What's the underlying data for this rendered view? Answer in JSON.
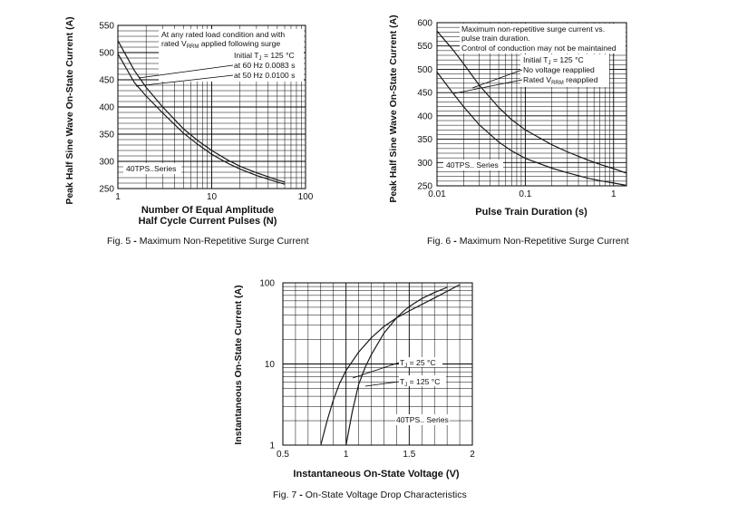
{
  "figures": [
    {
      "caption_prefix": "Fig. 5",
      "caption_bullet": "-",
      "caption_text": "Maximum Non-Repetitive Surge Current"
    },
    {
      "caption_prefix": "Fig. 6",
      "caption_bullet": "-",
      "caption_text": "Maximum Non-Repetitive Surge Current"
    },
    {
      "caption_prefix": "Fig. 7",
      "caption_bullet": "-",
      "caption_text": "On-State Voltage Drop Characteristics"
    }
  ],
  "chart_data": [
    {
      "type": "line",
      "ylabel": "Peak Half Sine Wave On-State Current (A)",
      "xlabel": [
        "Number Of Equal Amplitude",
        "Half Cycle Current Pulses (N)"
      ],
      "x_scale": "log",
      "xlim": [
        1,
        100
      ],
      "ylim": [
        250,
        550
      ],
      "x_tick_labels": [
        {
          "v": 1,
          "t": "1"
        },
        {
          "v": 10,
          "t": "10"
        },
        {
          "v": 100,
          "t": "100"
        }
      ],
      "y_tick_labels": [
        250,
        300,
        350,
        400,
        450,
        500,
        550
      ],
      "grid": true,
      "series": [
        {
          "x": [
            1,
            1.5,
            2,
            3,
            5,
            7,
            10,
            15,
            20,
            30,
            50,
            60
          ],
          "y": [
            522,
            467,
            436,
            400,
            360,
            339,
            320,
            302,
            291,
            279,
            266,
            262
          ]
        },
        {
          "x": [
            1,
            1.5,
            2,
            3,
            5,
            7,
            10,
            15,
            20,
            30,
            50,
            60
          ],
          "y": [
            498,
            445,
            420,
            389,
            352,
            332,
            313,
            296,
            286,
            274,
            262,
            258
          ]
        }
      ],
      "annotations": [
        "At any rated load condition and with",
        "rated V",
        "RRM",
        "applied following surge",
        "Initial T",
        "J",
        "= 125 °C",
        "at 60 Hz 0.0083 s",
        "at 50 Hz 0.0100 s"
      ],
      "series_label": "40TPS..Series"
    },
    {
      "type": "line",
      "ylabel": "Peak Half Sine Wave On-State Current (A)",
      "xlabel": "Pulse Train Duration (s)",
      "x_scale": "log",
      "xlim": [
        0.01,
        1.4
      ],
      "ylim": [
        250,
        600
      ],
      "x_tick_labels": [
        {
          "v": 0.01,
          "t": "0.01"
        },
        {
          "v": 0.1,
          "t": "0.1"
        },
        {
          "v": 1,
          "t": "1"
        }
      ],
      "y_tick_labels": [
        250,
        300,
        350,
        400,
        450,
        500,
        550,
        600
      ],
      "grid": true,
      "series": [
        {
          "x": [
            0.01,
            0.015,
            0.02,
            0.03,
            0.05,
            0.07,
            0.1,
            0.2,
            0.3,
            0.5,
            0.7,
            1,
            1.4
          ],
          "y": [
            582,
            543,
            512,
            466,
            418,
            392,
            370,
            338,
            323,
            306,
            296,
            287,
            277
          ]
        },
        {
          "x": [
            0.01,
            0.015,
            0.02,
            0.03,
            0.05,
            0.07,
            0.1,
            0.2,
            0.3,
            0.5,
            0.7,
            1,
            1.4
          ],
          "y": [
            494,
            450,
            420,
            381,
            344,
            325,
            309,
            288,
            278,
            267,
            261,
            256,
            251
          ]
        }
      ],
      "annotations": [
        "Maximum non-repetitive surge current vs.",
        "pulse train duration.",
        "Control of conduction may not be maintained",
        "Initial T",
        "J",
        "= 125 °C",
        "No voltage reapplied",
        "Rated V",
        "RRM",
        "reapplied"
      ],
      "series_label": "40TPS.. Series"
    },
    {
      "type": "line",
      "ylabel": "Instantaneous On-State Current (A)",
      "xlabel": "Instantaneous On-State Voltage (V)",
      "y_scale": "log",
      "xlim": [
        0.5,
        2
      ],
      "ylim": [
        1,
        100
      ],
      "x_tick_labels": [
        {
          "v": 0.5,
          "t": "0.5"
        },
        {
          "v": 1,
          "t": "1"
        },
        {
          "v": 1.5,
          "t": "1.5"
        },
        {
          "v": 2,
          "t": "2"
        }
      ],
      "y_tick_labels": [
        {
          "v": 1,
          "t": "1"
        },
        {
          "v": 10,
          "t": "10"
        },
        {
          "v": 100,
          "t": "100"
        }
      ],
      "grid": true,
      "series": [
        {
          "name": "T_J = 25 °C",
          "x": [
            1.0,
            1.05,
            1.1,
            1.15,
            1.2,
            1.3,
            1.4,
            1.45,
            1.5,
            1.6,
            1.7,
            1.8
          ],
          "y": [
            1.0,
            2.6,
            5.6,
            9.0,
            13,
            24,
            37,
            44,
            51,
            64,
            76,
            88
          ]
        },
        {
          "name": "T_J = 125 °C",
          "x": [
            0.8,
            0.85,
            0.9,
            0.95,
            1.0,
            1.1,
            1.2,
            1.3,
            1.4,
            1.5,
            1.7,
            1.9
          ],
          "y": [
            1.0,
            2.0,
            3.6,
            5.8,
            8.3,
            14,
            21,
            29,
            37,
            45,
            65,
            95
          ]
        }
      ],
      "legend_labels": [
        {
          "pre": "T",
          "sub": "J",
          "post": "= 25 °C"
        },
        {
          "pre": "T",
          "sub": "J",
          "post": "= 125 °C"
        }
      ],
      "series_label": "40TPS.. Series"
    }
  ]
}
